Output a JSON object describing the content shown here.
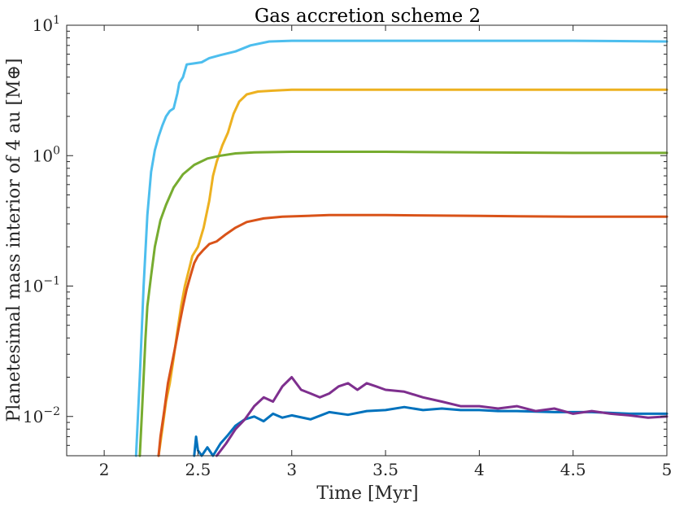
{
  "chart_data": {
    "type": "line",
    "title": "Gas accretion scheme 2",
    "xlabel": "Time [Myr]",
    "ylabel": "Planetesimal mass interior of 4 au [M⊕]",
    "xlim": [
      1.8,
      5.0
    ],
    "ylim": [
      0.005,
      10
    ],
    "yscale": "log",
    "grid": false,
    "x_ticks": [
      2,
      2.5,
      3,
      3.5,
      4,
      4.5,
      5
    ],
    "x_tick_labels": [
      "2",
      "2.5",
      "3",
      "3.5",
      "4",
      "4.5",
      "5"
    ],
    "y_ticks": [
      0.01,
      0.1,
      1,
      10
    ],
    "y_tick_labels": [
      {
        "base": "10",
        "exp": "−2"
      },
      {
        "base": "10",
        "exp": "−1"
      },
      {
        "base": "10",
        "exp": "0"
      },
      {
        "base": "10",
        "exp": "1"
      }
    ],
    "series": [
      {
        "name": "cyan",
        "color": "#4DBEEE",
        "points": [
          [
            2.17,
            0.005
          ],
          [
            2.19,
            0.02
          ],
          [
            2.21,
            0.1
          ],
          [
            2.23,
            0.35
          ],
          [
            2.25,
            0.75
          ],
          [
            2.27,
            1.1
          ],
          [
            2.29,
            1.4
          ],
          [
            2.31,
            1.7
          ],
          [
            2.33,
            2.0
          ],
          [
            2.35,
            2.2
          ],
          [
            2.37,
            2.3
          ],
          [
            2.39,
            3.0
          ],
          [
            2.4,
            3.6
          ],
          [
            2.42,
            4.0
          ],
          [
            2.44,
            5.0
          ],
          [
            2.48,
            5.1
          ],
          [
            2.52,
            5.2
          ],
          [
            2.56,
            5.6
          ],
          [
            2.62,
            5.9
          ],
          [
            2.7,
            6.3
          ],
          [
            2.78,
            7.0
          ],
          [
            2.88,
            7.5
          ],
          [
            3.0,
            7.6
          ],
          [
            3.5,
            7.6
          ],
          [
            4.0,
            7.6
          ],
          [
            4.5,
            7.6
          ],
          [
            5.0,
            7.5
          ]
        ]
      },
      {
        "name": "yellow",
        "color": "#EDB120",
        "points": [
          [
            2.29,
            0.005
          ],
          [
            2.31,
            0.008
          ],
          [
            2.33,
            0.013
          ],
          [
            2.35,
            0.018
          ],
          [
            2.37,
            0.028
          ],
          [
            2.39,
            0.045
          ],
          [
            2.41,
            0.07
          ],
          [
            2.43,
            0.1
          ],
          [
            2.45,
            0.13
          ],
          [
            2.47,
            0.17
          ],
          [
            2.5,
            0.2
          ],
          [
            2.53,
            0.28
          ],
          [
            2.56,
            0.45
          ],
          [
            2.58,
            0.7
          ],
          [
            2.6,
            0.9
          ],
          [
            2.63,
            1.2
          ],
          [
            2.66,
            1.5
          ],
          [
            2.69,
            2.1
          ],
          [
            2.72,
            2.6
          ],
          [
            2.76,
            2.95
          ],
          [
            2.82,
            3.1
          ],
          [
            2.9,
            3.15
          ],
          [
            3.0,
            3.2
          ],
          [
            4.0,
            3.2
          ],
          [
            5.0,
            3.2
          ]
        ]
      },
      {
        "name": "green",
        "color": "#77AC30",
        "points": [
          [
            2.19,
            0.005
          ],
          [
            2.2,
            0.01
          ],
          [
            2.21,
            0.02
          ],
          [
            2.22,
            0.04
          ],
          [
            2.23,
            0.07
          ],
          [
            2.25,
            0.12
          ],
          [
            2.27,
            0.2
          ],
          [
            2.3,
            0.32
          ],
          [
            2.33,
            0.42
          ],
          [
            2.37,
            0.57
          ],
          [
            2.42,
            0.72
          ],
          [
            2.48,
            0.85
          ],
          [
            2.55,
            0.95
          ],
          [
            2.62,
            1.0
          ],
          [
            2.7,
            1.04
          ],
          [
            2.8,
            1.06
          ],
          [
            3.0,
            1.07
          ],
          [
            3.5,
            1.07
          ],
          [
            4.0,
            1.06
          ],
          [
            4.5,
            1.05
          ],
          [
            5.0,
            1.05
          ]
        ]
      },
      {
        "name": "red",
        "color": "#D95319",
        "points": [
          [
            2.29,
            0.005
          ],
          [
            2.3,
            0.007
          ],
          [
            2.32,
            0.011
          ],
          [
            2.34,
            0.018
          ],
          [
            2.36,
            0.025
          ],
          [
            2.38,
            0.035
          ],
          [
            2.4,
            0.05
          ],
          [
            2.42,
            0.07
          ],
          [
            2.44,
            0.095
          ],
          [
            2.46,
            0.12
          ],
          [
            2.48,
            0.15
          ],
          [
            2.5,
            0.17
          ],
          [
            2.53,
            0.19
          ],
          [
            2.56,
            0.21
          ],
          [
            2.6,
            0.22
          ],
          [
            2.65,
            0.25
          ],
          [
            2.7,
            0.28
          ],
          [
            2.76,
            0.31
          ],
          [
            2.85,
            0.33
          ],
          [
            2.95,
            0.34
          ],
          [
            3.2,
            0.35
          ],
          [
            3.5,
            0.35
          ],
          [
            4.0,
            0.345
          ],
          [
            4.5,
            0.34
          ],
          [
            5.0,
            0.34
          ]
        ]
      },
      {
        "name": "blue",
        "color": "#0072BD",
        "points": [
          [
            2.48,
            0.005
          ],
          [
            2.49,
            0.007
          ],
          [
            2.5,
            0.0055
          ],
          [
            2.52,
            0.005
          ],
          [
            2.55,
            0.0058
          ],
          [
            2.58,
            0.005
          ],
          [
            2.62,
            0.0062
          ],
          [
            2.66,
            0.0072
          ],
          [
            2.7,
            0.0085
          ],
          [
            2.75,
            0.0095
          ],
          [
            2.8,
            0.01
          ],
          [
            2.85,
            0.0092
          ],
          [
            2.9,
            0.0105
          ],
          [
            2.95,
            0.0098
          ],
          [
            3.0,
            0.0102
          ],
          [
            3.1,
            0.0095
          ],
          [
            3.2,
            0.0108
          ],
          [
            3.3,
            0.0103
          ],
          [
            3.4,
            0.011
          ],
          [
            3.5,
            0.0112
          ],
          [
            3.6,
            0.0118
          ],
          [
            3.7,
            0.0112
          ],
          [
            3.8,
            0.0115
          ],
          [
            3.9,
            0.0112
          ],
          [
            4.0,
            0.0112
          ],
          [
            4.1,
            0.011
          ],
          [
            4.2,
            0.011
          ],
          [
            4.4,
            0.0108
          ],
          [
            4.6,
            0.0108
          ],
          [
            4.8,
            0.0105
          ],
          [
            5.0,
            0.0105
          ]
        ]
      },
      {
        "name": "purple",
        "color": "#7E2F8E",
        "points": [
          [
            2.6,
            0.005
          ],
          [
            2.65,
            0.0062
          ],
          [
            2.7,
            0.008
          ],
          [
            2.75,
            0.0095
          ],
          [
            2.8,
            0.012
          ],
          [
            2.85,
            0.014
          ],
          [
            2.9,
            0.013
          ],
          [
            2.95,
            0.017
          ],
          [
            3.0,
            0.02
          ],
          [
            3.05,
            0.016
          ],
          [
            3.1,
            0.015
          ],
          [
            3.15,
            0.014
          ],
          [
            3.2,
            0.015
          ],
          [
            3.25,
            0.017
          ],
          [
            3.3,
            0.018
          ],
          [
            3.35,
            0.016
          ],
          [
            3.4,
            0.018
          ],
          [
            3.45,
            0.017
          ],
          [
            3.5,
            0.016
          ],
          [
            3.6,
            0.0155
          ],
          [
            3.7,
            0.014
          ],
          [
            3.8,
            0.013
          ],
          [
            3.9,
            0.012
          ],
          [
            4.0,
            0.012
          ],
          [
            4.1,
            0.0115
          ],
          [
            4.2,
            0.012
          ],
          [
            4.3,
            0.011
          ],
          [
            4.4,
            0.0115
          ],
          [
            4.5,
            0.0105
          ],
          [
            4.6,
            0.011
          ],
          [
            4.7,
            0.0105
          ],
          [
            4.8,
            0.0102
          ],
          [
            4.9,
            0.0098
          ],
          [
            5.0,
            0.01
          ]
        ]
      }
    ]
  }
}
